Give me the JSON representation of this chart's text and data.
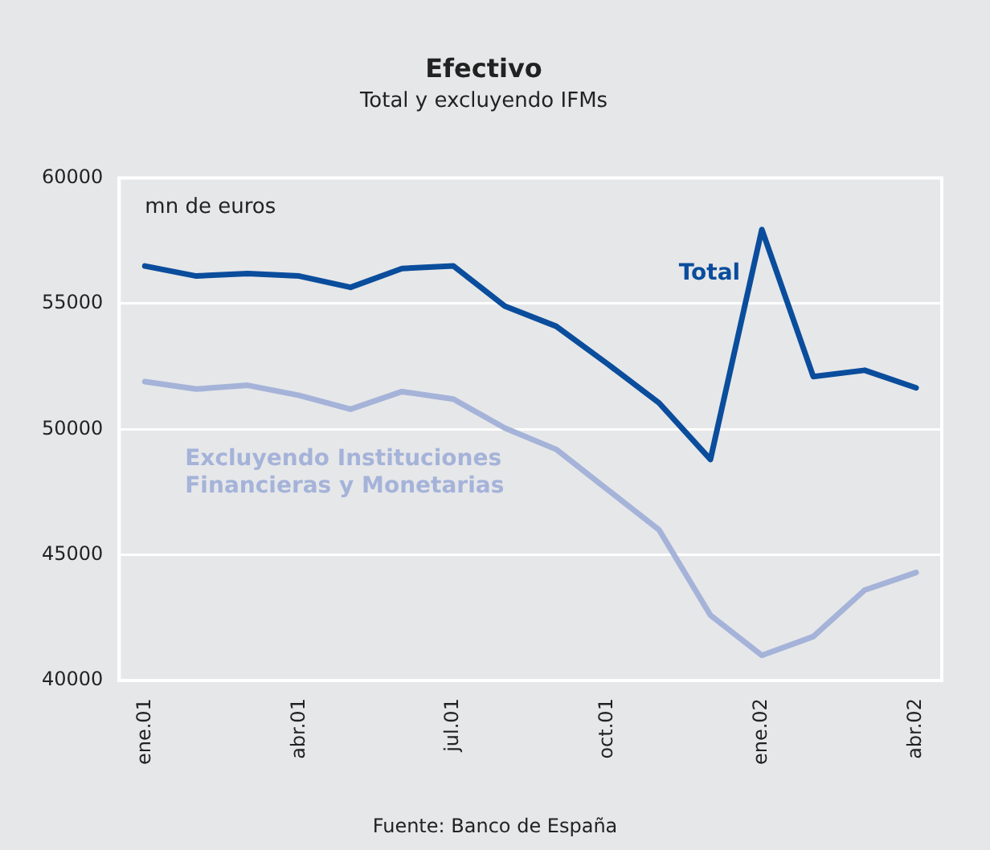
{
  "chart_data": {
    "type": "line",
    "title": "Efectivo",
    "subtitle": "Total y excluyendo IFMs",
    "ylabel": "mn de euros",
    "categories": [
      "ene.01",
      null,
      null,
      "abr.01",
      null,
      null,
      "jul.01",
      null,
      null,
      "oct.01",
      null,
      null,
      "ene.02",
      null,
      null,
      "abr.02"
    ],
    "series": [
      {
        "name": "Total",
        "color": "#0a4d9c",
        "values": [
          56500,
          56100,
          56200,
          56100,
          55650,
          56400,
          56500,
          54900,
          54100,
          52600,
          51050,
          48800,
          57950,
          52100,
          52350,
          51650
        ]
      },
      {
        "name": "Excluyendo Instituciones Financieras y Monetarias",
        "color": "#a5b3d9",
        "values": [
          51900,
          51600,
          51750,
          51350,
          50800,
          51500,
          51200,
          50050,
          49200,
          47600,
          46000,
          42600,
          41000,
          41750,
          43600,
          44300
        ]
      }
    ],
    "ylim": [
      40000,
      60000
    ],
    "yticks": [
      40000,
      45000,
      50000,
      55000,
      60000
    ],
    "grid": "y",
    "legend": false,
    "annotations": [
      "Fuente: Banco de España"
    ]
  }
}
